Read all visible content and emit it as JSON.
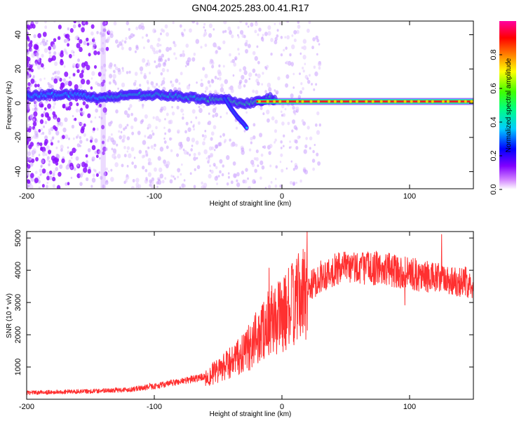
{
  "figure_title": "GN04.2025.283.00.41.R17",
  "chart_data": [
    {
      "type": "heatmap",
      "title": "GN04.2025.283.00.41.R17",
      "xlabel": "Height of straight line (km)",
      "ylabel": "Frequency (Hz)",
      "xlim": [
        -200,
        150
      ],
      "ylim": [
        -50,
        48
      ],
      "xticks": [
        -200,
        -100,
        0,
        100
      ],
      "yticks": [
        -40,
        -20,
        0,
        20,
        40
      ],
      "colorbar": {
        "label": "Normalized spectral amplitude",
        "range": [
          0,
          1
        ],
        "ticks": [
          "0.0",
          "0.2",
          "0.4",
          "0.6",
          "0.8"
        ],
        "colors": [
          "#ffffff",
          "#a000ff",
          "#0000ff",
          "#00ffff",
          "#00ff00",
          "#ffff00",
          "#ff8000",
          "#ff0000",
          "#ff00a0"
        ]
      },
      "ridge": {
        "x": [
          -200,
          -180,
          -160,
          -140,
          -120,
          -100,
          -80,
          -60,
          -45,
          -35,
          -25,
          -15,
          -10,
          0,
          20,
          50,
          100,
          150
        ],
        "y": [
          4,
          5,
          5,
          3,
          5,
          5,
          4,
          2,
          3,
          0,
          0,
          1,
          3,
          1,
          1,
          1,
          1,
          1
        ]
      },
      "branch": {
        "x": [
          -45,
          -40,
          -35,
          -30,
          -27
        ],
        "y": [
          3,
          -3,
          -8,
          -12,
          -15
        ]
      }
    },
    {
      "type": "line",
      "xlabel": "Height of straight line (km)",
      "ylabel": "SNR (10 * v/v)",
      "xlim": [
        -200,
        150
      ],
      "ylim": [
        0,
        5200
      ],
      "xticks": [
        -200,
        -100,
        0,
        100
      ],
      "yticks": [
        1000,
        2000,
        3000,
        4000,
        5000
      ],
      "series_color": "#ff3030",
      "trend": {
        "x": [
          -200,
          -150,
          -120,
          -100,
          -80,
          -60,
          -50,
          -40,
          -30,
          -20,
          -10,
          0,
          10,
          20,
          30,
          40,
          60,
          80,
          100,
          120,
          150
        ],
        "y": [
          200,
          250,
          300,
          400,
          550,
          700,
          850,
          1150,
          1400,
          1900,
          2400,
          2600,
          3000,
          3400,
          3800,
          4000,
          4100,
          4050,
          3900,
          3750,
          3600
        ]
      }
    }
  ]
}
